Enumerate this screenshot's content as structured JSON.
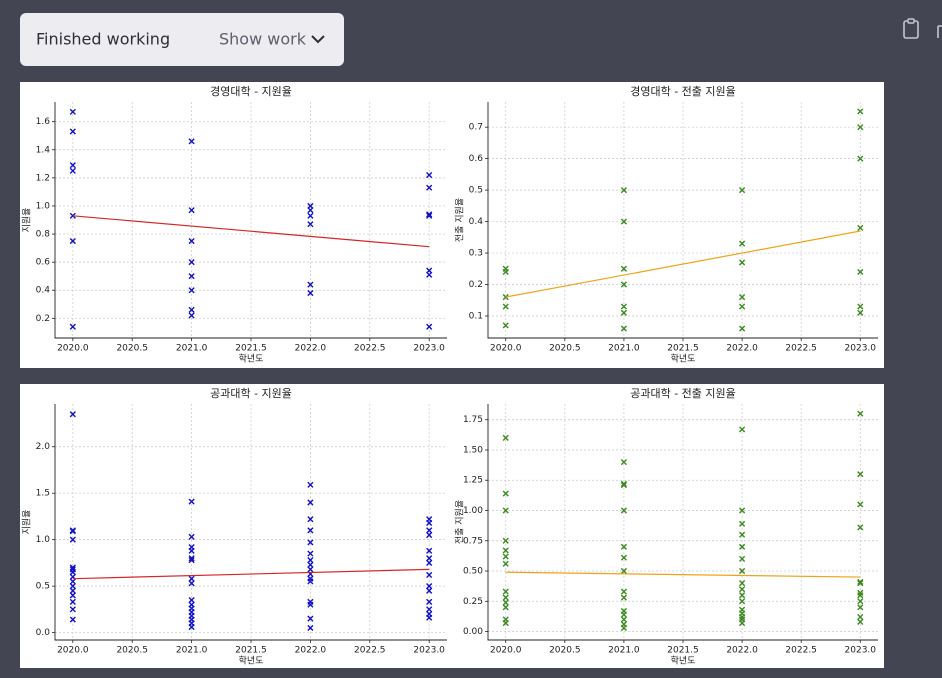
{
  "header": {
    "status": "Finished working",
    "action": "Show work"
  },
  "chart_data": [
    {
      "type": "scatter",
      "title": "경영대학 - 지원율",
      "xlabel": "학년도",
      "ylabel": "지원율",
      "color": "#1010c8",
      "grid": true,
      "x": [
        2020,
        2020,
        2020,
        2020,
        2020,
        2020,
        2020,
        2021,
        2021,
        2021,
        2021,
        2021,
        2021,
        2021,
        2021,
        2022,
        2022,
        2022,
        2022,
        2022,
        2022,
        2023,
        2023,
        2023,
        2023,
        2023,
        2023,
        2023
      ],
      "values": [
        1.67,
        1.53,
        1.29,
        1.25,
        0.93,
        0.75,
        0.14,
        1.46,
        0.97,
        0.75,
        0.6,
        0.5,
        0.4,
        0.26,
        0.22,
        1.0,
        0.97,
        0.93,
        0.87,
        0.44,
        0.38,
        1.22,
        1.13,
        0.94,
        0.93,
        0.54,
        0.51,
        0.14
      ],
      "trend": {
        "color": "#d62728",
        "x": [
          2020,
          2023
        ],
        "values": [
          0.93,
          0.71
        ]
      },
      "xlim": [
        2019.85,
        2023.15
      ],
      "ylim": [
        0.06,
        1.74
      ],
      "xticks": [
        {
          "value": 2020,
          "label": "2020.0"
        },
        2020.5,
        {
          "value": 2021,
          "label": "2021.0"
        },
        2021.5,
        {
          "value": 2022,
          "label": "2022.0"
        },
        2022.5,
        {
          "value": 2023,
          "label": "2023.0"
        }
      ],
      "yticks": [
        0.2,
        0.4,
        0.6,
        0.8,
        {
          "value": 1,
          "label": "1.0"
        },
        1.2,
        1.4,
        1.6
      ]
    },
    {
      "type": "scatter",
      "title": "경영대학 - 전출 지원율",
      "xlabel": "학년도",
      "ylabel": "전출 지원율",
      "color": "#3a8a1f",
      "grid": true,
      "x": [
        2020,
        2020,
        2020,
        2020,
        2020,
        2021,
        2021,
        2021,
        2021,
        2021,
        2021,
        2021,
        2022,
        2022,
        2022,
        2022,
        2022,
        2022,
        2023,
        2023,
        2023,
        2023,
        2023,
        2023,
        2023
      ],
      "values": [
        0.25,
        0.24,
        0.16,
        0.13,
        0.07,
        0.5,
        0.4,
        0.25,
        0.2,
        0.13,
        0.11,
        0.06,
        0.5,
        0.33,
        0.27,
        0.16,
        0.13,
        0.06,
        0.75,
        0.7,
        0.6,
        0.38,
        0.24,
        0.13,
        0.11
      ],
      "trend": {
        "color": "#f0a31a",
        "x": [
          2020,
          2023
        ],
        "values": [
          0.16,
          0.37
        ]
      },
      "xlim": [
        2019.85,
        2023.15
      ],
      "ylim": [
        0.03,
        0.78
      ],
      "xticks": [
        {
          "value": 2020,
          "label": "2020.0"
        },
        2020.5,
        {
          "value": 2021,
          "label": "2021.0"
        },
        2021.5,
        {
          "value": 2022,
          "label": "2022.0"
        },
        2022.5,
        {
          "value": 2023,
          "label": "2023.0"
        }
      ],
      "yticks": [
        0.1,
        0.2,
        0.3,
        0.4,
        0.5,
        0.6,
        0.7
      ]
    },
    {
      "type": "scatter",
      "title": "공과대학 - 지원율",
      "xlabel": "학년도",
      "ylabel": "지원율",
      "color": "#1010c8",
      "grid": true,
      "x": [
        2020,
        2020,
        2020,
        2020,
        2020,
        2020,
        2020,
        2020,
        2020,
        2020,
        2020,
        2020,
        2020,
        2020,
        2020,
        2021,
        2021,
        2021,
        2021,
        2021,
        2021,
        2021,
        2021,
        2021,
        2021,
        2021,
        2021,
        2021,
        2021,
        2021,
        2021,
        2022,
        2022,
        2022,
        2022,
        2022,
        2022,
        2022,
        2022,
        2022,
        2022,
        2022,
        2022,
        2022,
        2022,
        2022,
        2022,
        2023,
        2023,
        2023,
        2023,
        2023,
        2023,
        2023,
        2023,
        2023,
        2023,
        2023,
        2023,
        2023,
        2023
      ],
      "values": [
        2.35,
        1.1,
        1.09,
        1.0,
        0.7,
        0.68,
        0.65,
        0.6,
        0.55,
        0.5,
        0.45,
        0.4,
        0.33,
        0.25,
        0.14,
        1.41,
        1.03,
        0.92,
        0.88,
        0.8,
        0.78,
        0.58,
        0.53,
        0.35,
        0.3,
        0.26,
        0.22,
        0.18,
        0.14,
        0.1,
        0.06,
        1.59,
        1.4,
        1.22,
        1.1,
        0.97,
        0.85,
        0.78,
        0.73,
        0.68,
        0.63,
        0.58,
        0.55,
        0.33,
        0.3,
        0.15,
        0.05,
        1.22,
        1.18,
        1.1,
        1.05,
        0.88,
        0.8,
        0.75,
        0.62,
        0.5,
        0.45,
        0.33,
        0.25,
        0.2,
        0.16
      ],
      "trend": {
        "color": "#d62728",
        "x": [
          2020,
          2023
        ],
        "values": [
          0.58,
          0.68
        ]
      },
      "xlim": [
        2019.85,
        2023.15
      ],
      "ylim": [
        -0.08,
        2.46
      ],
      "xticks": [
        {
          "value": 2020,
          "label": "2020.0"
        },
        2020.5,
        {
          "value": 2021,
          "label": "2021.0"
        },
        2021.5,
        {
          "value": 2022,
          "label": "2022.0"
        },
        2022.5,
        {
          "value": 2023,
          "label": "2023.0"
        }
      ],
      "yticks": [
        {
          "value": 0,
          "label": "0.0"
        },
        0.5,
        {
          "value": 1,
          "label": "1.0"
        },
        1.5,
        {
          "value": 2,
          "label": "2.0"
        }
      ]
    },
    {
      "type": "scatter",
      "title": "공과대학 - 전출 지원율",
      "xlabel": "학년도",
      "ylabel": "전출 지원율",
      "color": "#3a8a1f",
      "grid": true,
      "x": [
        2020,
        2020,
        2020,
        2020,
        2020,
        2020,
        2020,
        2020,
        2020,
        2020,
        2020,
        2020,
        2020,
        2021,
        2021,
        2021,
        2021,
        2021,
        2021,
        2021,
        2021,
        2021,
        2021,
        2021,
        2021,
        2021,
        2021,
        2022,
        2022,
        2022,
        2022,
        2022,
        2022,
        2022,
        2022,
        2022,
        2022,
        2022,
        2022,
        2022,
        2022,
        2022,
        2022,
        2023,
        2023,
        2023,
        2023,
        2023,
        2023,
        2023,
        2023,
        2023,
        2023,
        2023,
        2023
      ],
      "values": [
        1.6,
        1.14,
        1.0,
        0.75,
        0.67,
        0.62,
        0.56,
        0.33,
        0.28,
        0.24,
        0.2,
        0.1,
        0.07,
        1.4,
        1.22,
        1.21,
        1.0,
        0.7,
        0.61,
        0.5,
        0.33,
        0.28,
        0.17,
        0.14,
        0.1,
        0.06,
        0.03,
        1.67,
        1.0,
        0.89,
        0.8,
        0.7,
        0.6,
        0.5,
        0.4,
        0.35,
        0.3,
        0.25,
        0.18,
        0.15,
        0.12,
        0.1,
        0.07,
        1.8,
        1.3,
        1.05,
        0.86,
        0.41,
        0.4,
        0.32,
        0.3,
        0.25,
        0.2,
        0.12,
        0.08
      ],
      "trend": {
        "color": "#f0a31a",
        "x": [
          2020,
          2023
        ],
        "values": [
          0.49,
          0.45
        ]
      },
      "xlim": [
        2019.85,
        2023.15
      ],
      "ylim": [
        -0.07,
        1.88
      ],
      "xticks": [
        {
          "value": 2020,
          "label": "2020.0"
        },
        2020.5,
        {
          "value": 2021,
          "label": "2021.0"
        },
        2021.5,
        {
          "value": 2022,
          "label": "2022.0"
        },
        2022.5,
        {
          "value": 2023,
          "label": "2023.0"
        }
      ],
      "yticks": [
        {
          "value": 0,
          "label": "0.00"
        },
        0.25,
        {
          "value": 0.5,
          "label": "0.50"
        },
        0.75,
        {
          "value": 1,
          "label": "1.00"
        },
        1.25,
        {
          "value": 1.5,
          "label": "1.50"
        },
        1.75
      ]
    }
  ]
}
